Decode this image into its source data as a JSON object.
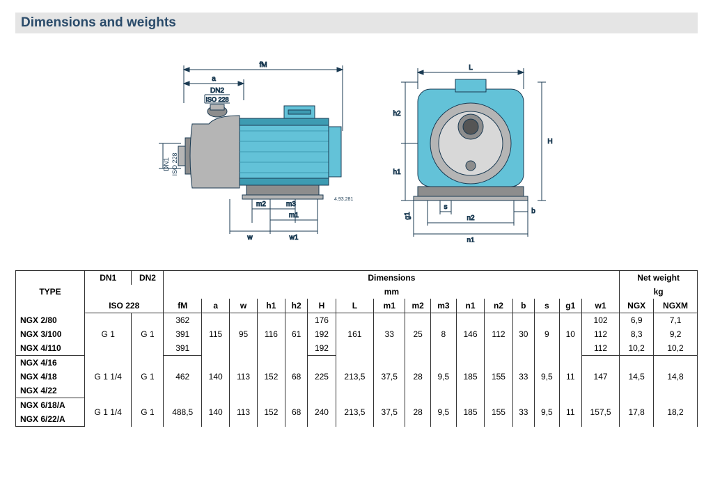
{
  "title": "Dimensions and weights",
  "diagram": {
    "labels": {
      "fM": "fM",
      "a": "a",
      "DN2": "DN2",
      "ISO228_top": "ISO 228",
      "DN1": "DN1",
      "ISO228_left": "ISO 228",
      "m2": "m2",
      "m3": "m3",
      "m1": "m1",
      "w": "w",
      "w1": "w1",
      "L": "L",
      "h2": "h2",
      "h1": "h1",
      "H": "H",
      "g1": "g1",
      "s": "s",
      "b": "b",
      "n2": "n2",
      "n1": "n1",
      "partno": "4.93.281"
    },
    "colors": {
      "pump_body": "#63c2d8",
      "pump_body_dark": "#3d9bb2",
      "steel": "#b5b5b5",
      "steel_dark": "#8d8d8d",
      "line": "#1a3a52",
      "text": "#1a3a52"
    }
  },
  "table": {
    "headers": {
      "type": "TYPE",
      "dn1": "DN1",
      "dn2": "DN2",
      "iso": "ISO 228",
      "dimensions": "Dimensions",
      "mm": "mm",
      "netweight": "Net weight",
      "kg": "kg",
      "cols": [
        "fM",
        "a",
        "w",
        "h1",
        "h2",
        "H",
        "L",
        "m1",
        "m2",
        "m3",
        "n1",
        "n2",
        "b",
        "s",
        "g1",
        "w1",
        "NGX",
        "NGXM"
      ]
    },
    "groups": [
      {
        "types": [
          "NGX 2/80",
          "NGX 3/100",
          "NGX 4/110"
        ],
        "dn1": "G 1",
        "dn2": "G 1",
        "fM": [
          "362",
          "391",
          "391"
        ],
        "a": "115",
        "w": "95",
        "h1": "116",
        "h2": "61",
        "H": [
          "176",
          "192",
          "192"
        ],
        "L": "161",
        "m1": "33",
        "m2": "25",
        "m3": "8",
        "n1": "146",
        "n2": "112",
        "b": "30",
        "s": "9",
        "g1": "10",
        "w1": [
          "102",
          "112",
          "112"
        ],
        "ngx": [
          "6,9",
          "8,3",
          "10,2"
        ],
        "ngxm": [
          "7,1",
          "9,2",
          "10,2"
        ]
      },
      {
        "types": [
          "NGX 4/16",
          "NGX 4/18",
          "NGX 4/22"
        ],
        "dn1": "G 1 1/4",
        "dn2": "G 1",
        "fM": "462",
        "a": "140",
        "w": "113",
        "h1": "152",
        "h2": "68",
        "H": "225",
        "L": "213,5",
        "m1": "37,5",
        "m2": "28",
        "m3": "9,5",
        "n1": "185",
        "n2": "155",
        "b": "33",
        "s": "9,5",
        "g1": "11",
        "w1": "147",
        "ngx": "14,5",
        "ngxm": "14,8"
      },
      {
        "types": [
          "NGX 6/18/A",
          "NGX 6/22/A"
        ],
        "dn1": "G 1 1/4",
        "dn2": "G 1",
        "fM": "488,5",
        "a": "140",
        "w": "113",
        "h1": "152",
        "h2": "68",
        "H": "240",
        "L": "213,5",
        "m1": "37,5",
        "m2": "28",
        "m3": "9,5",
        "n1": "185",
        "n2": "155",
        "b": "33",
        "s": "9,5",
        "g1": "11",
        "w1": "157,5",
        "ngx": "17,8",
        "ngxm": "18,2"
      }
    ]
  }
}
